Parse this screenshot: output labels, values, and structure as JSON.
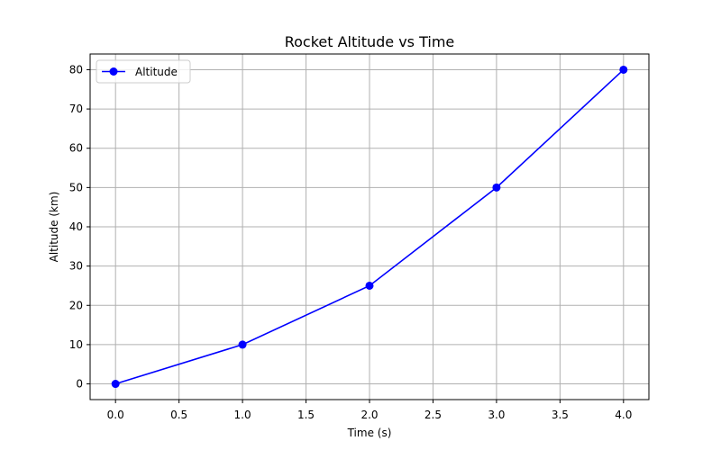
{
  "chart_data": {
    "type": "line",
    "title": "Rocket Altitude vs Time",
    "xlabel": "Time (s)",
    "ylabel": "Altitude (km)",
    "xlim": [
      -0.2,
      4.2
    ],
    "ylim": [
      -4,
      84
    ],
    "x_ticks": [
      0.0,
      0.5,
      1.0,
      1.5,
      2.0,
      2.5,
      3.0,
      3.5,
      4.0
    ],
    "x_tick_labels": [
      "0.0",
      "0.5",
      "1.0",
      "1.5",
      "2.0",
      "2.5",
      "3.0",
      "3.5",
      "4.0"
    ],
    "y_ticks": [
      0,
      10,
      20,
      30,
      40,
      50,
      60,
      70,
      80
    ],
    "y_tick_labels": [
      "0",
      "10",
      "20",
      "30",
      "40",
      "50",
      "60",
      "70",
      "80"
    ],
    "grid": true,
    "legend": {
      "position": "top-left",
      "entries": [
        "Altitude"
      ]
    },
    "series": [
      {
        "name": "Altitude",
        "color": "#0000ff",
        "marker": "circle",
        "x": [
          0,
          1,
          2,
          3,
          4
        ],
        "y": [
          0,
          10,
          25,
          50,
          80
        ]
      }
    ]
  }
}
